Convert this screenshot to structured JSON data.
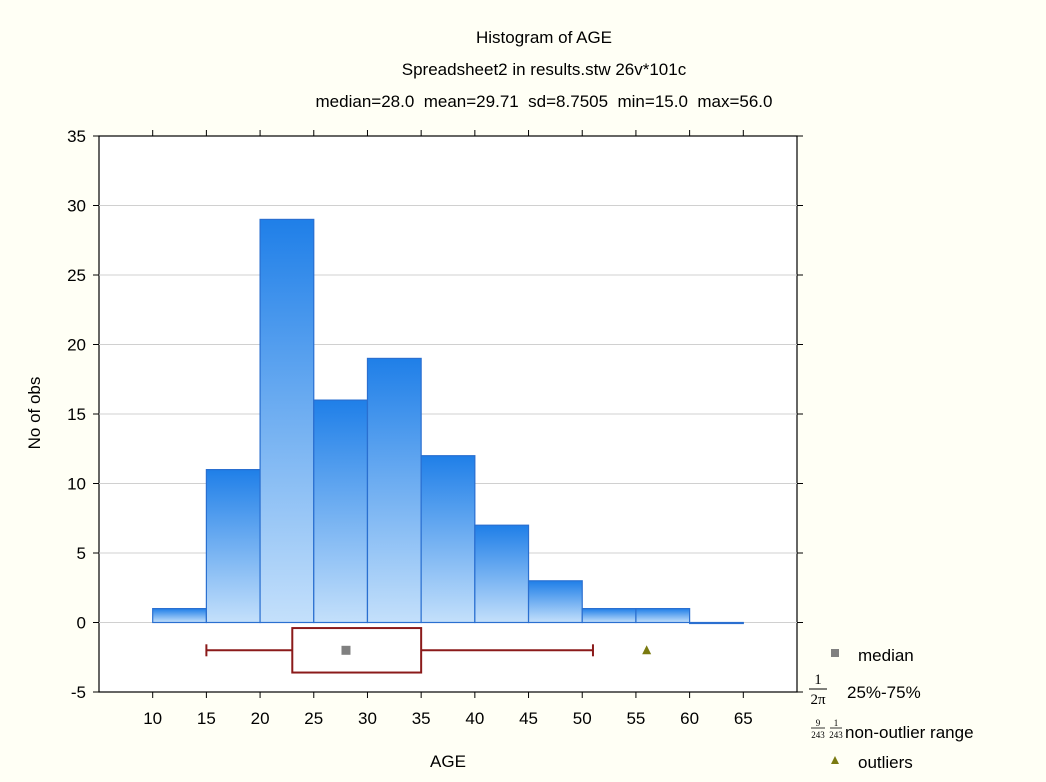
{
  "chart_data": {
    "type": "bar",
    "title": "Histogram of AGE",
    "subtitle": "Spreadsheet2 in results.stw 26v*101c",
    "stats_line": "median=28.0  mean=29.71  sd=8.7505  min=15.0  max=56.0",
    "xlabel": "AGE",
    "ylabel": "No of obs",
    "xlim": [
      5,
      70
    ],
    "ylim": [
      -5,
      35
    ],
    "x_ticks": [
      10,
      15,
      20,
      25,
      30,
      35,
      40,
      45,
      50,
      55,
      60,
      65
    ],
    "y_ticks": [
      -5,
      0,
      5,
      10,
      15,
      20,
      25,
      30,
      35
    ],
    "grid": true,
    "bins": [
      {
        "from": 10,
        "to": 15,
        "count": 1
      },
      {
        "from": 15,
        "to": 20,
        "count": 11
      },
      {
        "from": 20,
        "to": 25,
        "count": 29
      },
      {
        "from": 25,
        "to": 30,
        "count": 16
      },
      {
        "from": 30,
        "to": 35,
        "count": 19
      },
      {
        "from": 35,
        "to": 40,
        "count": 12
      },
      {
        "from": 40,
        "to": 45,
        "count": 7
      },
      {
        "from": 45,
        "to": 50,
        "count": 3
      },
      {
        "from": 50,
        "to": 55,
        "count": 1
      },
      {
        "from": 55,
        "to": 60,
        "count": 1
      },
      {
        "from": 60,
        "to": 65,
        "count": 0
      }
    ],
    "boxplot": {
      "y": -2,
      "median": 28,
      "q1": 23,
      "q3": 35,
      "whisker_low": 15,
      "whisker_high": 51,
      "outliers": [
        56
      ]
    },
    "legend": {
      "placement": "bottom-right",
      "items": [
        {
          "label": "median"
        },
        {
          "label": "25%-75%",
          "glyph_num": "1",
          "glyph_den": "2π"
        },
        {
          "label": "non-outlier range",
          "glyph_a_num": "9",
          "glyph_a_den": "243",
          "glyph_b_num": "1",
          "glyph_b_den": "243"
        },
        {
          "label": "outliers"
        }
      ]
    },
    "colors": {
      "bar_top": "#1f7fe8",
      "bar_bottom": "#c4e0fb",
      "bar_edge": "#2a6fd0",
      "box": "#8b1a1a",
      "median_marker": "#808080",
      "outlier_marker": "#7a7a10",
      "background": "#fffff5",
      "plot_area": "#ffffff",
      "grid": "#d0d0d0"
    }
  }
}
